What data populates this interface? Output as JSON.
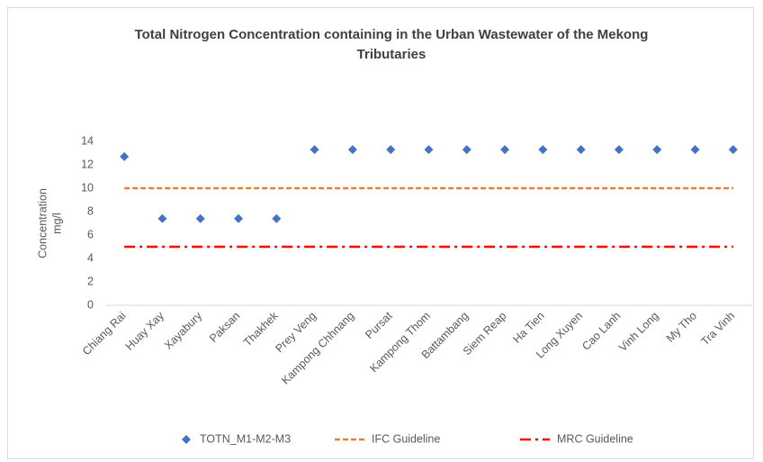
{
  "chart_data": {
    "type": "line",
    "title": "Total Nitrogen Concentration containing in the Urban Wastewater of the Mekong Tributaries",
    "ylabel_lines": [
      "Concentration",
      "mg/l"
    ],
    "categories": [
      "Chiang Rai",
      "Huay Xay",
      "Xayabury",
      "Paksan",
      "Thakhek",
      "Prey Veng",
      "Kampong Chhnang",
      "Pursat",
      "Kampong Thom",
      "Battambang",
      "Siem Reap",
      "Ha Tien",
      "Long Xuyen",
      "Cao Lanh",
      "Vinh Long",
      "My Tho",
      "Tra Vinh"
    ],
    "series": [
      {
        "name": "TOTN_M1-M2-M3",
        "color": "#4472c4",
        "style": "markers",
        "values": [
          12.7,
          7.4,
          7.4,
          7.4,
          7.4,
          13.3,
          13.3,
          13.3,
          13.3,
          13.3,
          13.3,
          13.3,
          13.3,
          13.3,
          13.3,
          13.3,
          13.3
        ]
      },
      {
        "name": "IFC Guideline",
        "color": "#ed7d31",
        "style": "dash",
        "values": [
          10,
          10,
          10,
          10,
          10,
          10,
          10,
          10,
          10,
          10,
          10,
          10,
          10,
          10,
          10,
          10,
          10
        ]
      },
      {
        "name": "MRC Guideline",
        "color": "#ff0000",
        "style": "dashdot",
        "values": [
          5,
          5,
          5,
          5,
          5,
          5,
          5,
          5,
          5,
          5,
          5,
          5,
          5,
          5,
          5,
          5,
          5
        ]
      }
    ],
    "ylim": [
      0,
      14
    ],
    "yticks": [
      0,
      2,
      4,
      6,
      8,
      10,
      12,
      14
    ],
    "grid": false,
    "legend": "bottom"
  }
}
